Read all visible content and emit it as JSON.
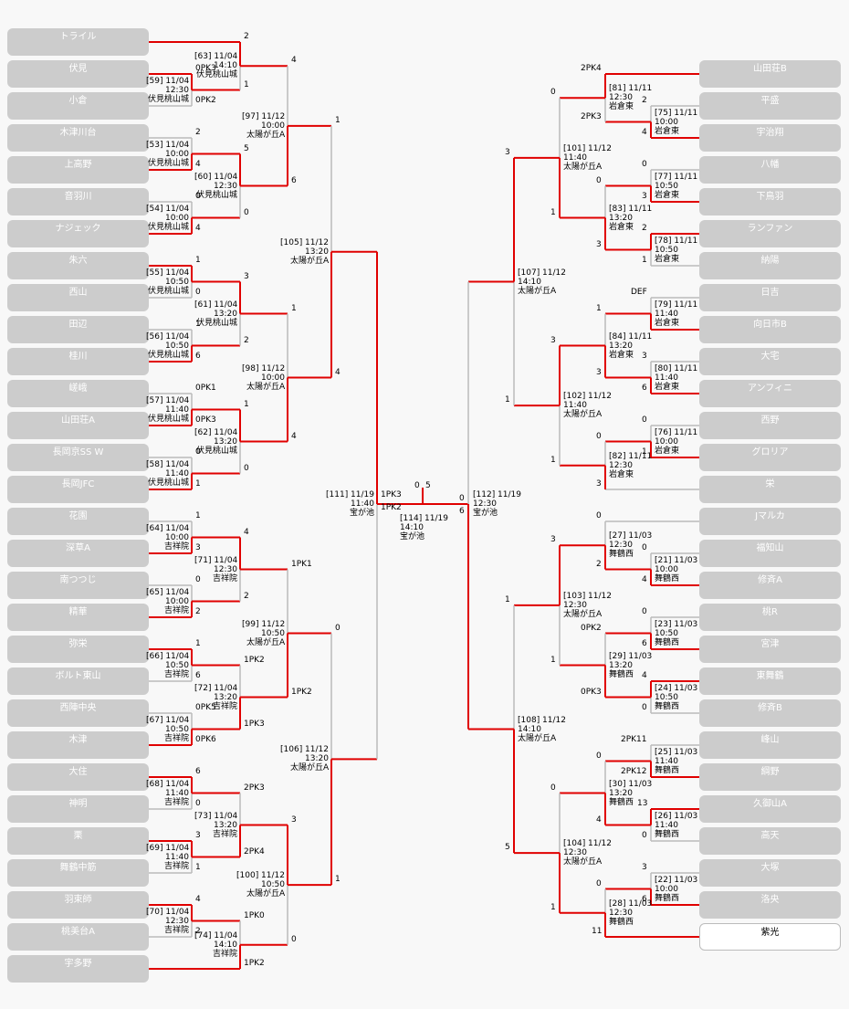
{
  "colors": {
    "win": "#e00000",
    "lose": "#bbbbbb",
    "team_bg": "#cccccc",
    "team_text": "#ffffff",
    "bg": "#f8f8f8"
  },
  "teams_left": [
    "トライル",
    "伏見",
    "小倉",
    "木津川台",
    "上高野",
    "音羽川",
    "ナジェック",
    "朱六",
    "西山",
    "田辺",
    "桂川",
    "嵯峨",
    "山田荘A",
    "長岡京SS W",
    "長岡JFC",
    "花園",
    "深草A",
    "南つつじ",
    "精華",
    "弥栄",
    "ボルト東山",
    "西陣中央",
    "木津",
    "大住",
    "神明",
    "栗",
    "舞鶴中筋",
    "羽束師",
    "桃美台A",
    "宇多野"
  ],
  "teams_right": [
    "山田荘B",
    "平盛",
    "宇治翔",
    "八幡",
    "下鳥羽",
    "ランファン",
    "納陽",
    "日吉",
    "向日市B",
    "大宅",
    "アンフィニ",
    "西野",
    "グロリア",
    "栄",
    "Jマルカ",
    "福知山",
    "修斉A",
    "桃R",
    "宮津",
    "東舞鶴",
    "修斉B",
    "峰山",
    "綱野",
    "久御山A",
    "高天",
    "大塚",
    "洛央",
    "紫光"
  ],
  "left_r1": [
    {
      "info": [
        "[63] 11/04",
        "14:10",
        "伏見桃山城"
      ],
      "s": [
        "2",
        "1"
      ]
    },
    {
      "info": [
        "[59] 11/04",
        "12:30",
        "伏見桃山城"
      ],
      "s": [
        "0PK3",
        "0PK2"
      ]
    },
    {
      "info": [
        "[53] 11/04",
        "10:00",
        "伏見桃山城"
      ],
      "s": [
        "2",
        "4"
      ]
    },
    {
      "info": [
        "[54] 11/04",
        "10:00",
        "伏見桃山城"
      ],
      "s": [
        "0",
        "4"
      ]
    },
    {
      "info": [
        "[55] 11/04",
        "10:50",
        "伏見桃山城"
      ],
      "s": [
        "1",
        "0"
      ]
    },
    {
      "info": [
        "[56] 11/04",
        "10:50",
        "伏見桃山城"
      ],
      "s": [
        "1",
        "6"
      ]
    },
    {
      "info": [
        "[57] 11/04",
        "11:40",
        "伏見桃山城"
      ],
      "s": [
        "0PK1",
        "0PK3"
      ]
    },
    {
      "info": [
        "[58] 11/04",
        "11:40",
        "伏見桃山城"
      ],
      "s": [
        "0",
        "1"
      ]
    },
    {
      "info": [
        "[64] 11/04",
        "10:00",
        "吉祥院"
      ],
      "s": [
        "1",
        "3"
      ]
    },
    {
      "info": [
        "[65] 11/04",
        "10:00",
        "吉祥院"
      ],
      "s": [
        "0",
        "2"
      ]
    },
    {
      "info": [
        "[66] 11/04",
        "10:50",
        "吉祥院"
      ],
      "s": [
        "1",
        "6"
      ]
    },
    {
      "info": [
        "[67] 11/04",
        "10:50",
        "吉祥院"
      ],
      "s": [
        "0PK5",
        "0PK6"
      ]
    },
    {
      "info": [
        "[68] 11/04",
        "11:40",
        "吉祥院"
      ],
      "s": [
        "6",
        "0"
      ]
    },
    {
      "info": [
        "[69] 11/04",
        "11:40",
        "吉祥院"
      ],
      "s": [
        "3",
        "1"
      ]
    },
    {
      "info": [
        "[70] 11/04",
        "12:30",
        "吉祥院"
      ],
      "s": [
        "4",
        "2"
      ]
    }
  ],
  "left_r2": [
    {
      "info": [
        "[60] 11/04",
        "12:30",
        "伏見桃山城"
      ],
      "s": [
        "5",
        "0"
      ]
    },
    {
      "info": [
        "[61] 11/04",
        "13:20",
        "伏見桃山城"
      ],
      "s": [
        "3",
        "2"
      ]
    },
    {
      "info": [
        "[62] 11/04",
        "13:20",
        "伏見桃山城"
      ],
      "s": [
        "1",
        "0"
      ]
    },
    {
      "info": [
        "[71] 11/04",
        "12:30",
        "吉祥院"
      ],
      "s": [
        "4",
        "2"
      ]
    },
    {
      "info": [
        "[72] 11/04",
        "13:20",
        "吉祥院"
      ],
      "s": [
        "1PK2",
        "1PK3"
      ]
    },
    {
      "info": [
        "[73] 11/04",
        "13:20",
        "吉祥院"
      ],
      "s": [
        "2PK3",
        "2PK4"
      ]
    },
    {
      "info": [
        "[74] 11/04",
        "14:10",
        "吉祥院"
      ],
      "s": [
        "1PK0",
        "1PK2"
      ]
    }
  ],
  "left_r3": [
    {
      "info": [
        "[97] 11/12",
        "10:00",
        "太陽が丘A"
      ],
      "s": [
        "4",
        "6"
      ]
    },
    {
      "info": [
        "[98] 11/12",
        "10:00",
        "太陽が丘A"
      ],
      "s": [
        "1",
        "4"
      ]
    },
    {
      "info": [
        "[99] 11/12",
        "10:50",
        "太陽が丘A"
      ],
      "s": [
        "1PK1",
        "1PK2"
      ]
    },
    {
      "info": [
        "[100] 11/12",
        "10:50",
        "太陽が丘A"
      ],
      "s": [
        "3",
        "0"
      ]
    }
  ],
  "left_r4": [
    {
      "info": [
        "[105] 11/12",
        "13:20",
        "太陽が丘A"
      ],
      "s": [
        "1",
        "4"
      ]
    },
    {
      "info": [
        "[106] 11/12",
        "13:20",
        "太陽が丘A"
      ],
      "s": [
        "0",
        "1"
      ]
    }
  ],
  "left_sf": {
    "info": [
      "[111] 11/19",
      "11:40",
      "宝が池"
    ],
    "s": [
      "1PK3",
      "1PK2"
    ]
  },
  "final": {
    "info": [
      "[114] 11/19",
      "14:10",
      "宝が池"
    ],
    "s": [
      "0",
      "5"
    ]
  },
  "right_sf": {
    "info": [
      "[112] 11/19",
      "12:30",
      "宝が池"
    ],
    "s": [
      "0",
      "6"
    ]
  },
  "right_r4": [
    {
      "info": [
        "[107] 11/12",
        "14:10",
        "太陽が丘A"
      ],
      "s": [
        "3",
        "1"
      ]
    },
    {
      "info": [
        "[108] 11/12",
        "14:10",
        "太陽が丘A"
      ],
      "s": [
        "1",
        "5"
      ]
    }
  ],
  "right_r3": [
    {
      "info": [
        "[101] 11/12",
        "11:40",
        "太陽が丘A"
      ],
      "s": [
        "0",
        "1"
      ]
    },
    {
      "info": [
        "[102] 11/12",
        "11:40",
        "太陽が丘A"
      ],
      "s": [
        "3",
        "1"
      ]
    },
    {
      "info": [
        "[103] 11/12",
        "12:30",
        "太陽が丘A"
      ],
      "s": [
        "3",
        "1"
      ]
    },
    {
      "info": [
        "[104] 11/12",
        "12:30",
        "太陽が丘A"
      ],
      "s": [
        "0",
        "1"
      ]
    }
  ],
  "right_r2": [
    {
      "info": [
        "[81] 11/11",
        "12:30",
        "岩倉東"
      ],
      "s": [
        "2PK4",
        "2PK3"
      ]
    },
    {
      "info": [
        "[83] 11/11",
        "13:20",
        "岩倉東"
      ],
      "s": [
        "0",
        "3"
      ]
    },
    {
      "info": [
        "[84] 11/11",
        "13:20",
        "岩倉東"
      ],
      "s": [
        "1",
        "3"
      ]
    },
    {
      "info": [
        "[82] 11/11",
        "12:30",
        "岩倉東"
      ],
      "s": [
        "0",
        "3"
      ]
    },
    {
      "info": [
        "[27] 11/03",
        "12:30",
        "舞鶴西"
      ],
      "s": [
        "0",
        "2"
      ]
    },
    {
      "info": [
        "[29] 11/03",
        "13:20",
        "舞鶴西"
      ],
      "s": [
        "0PK2",
        "0PK3"
      ]
    },
    {
      "info": [
        "[30] 11/03",
        "13:20",
        "舞鶴西"
      ],
      "s": [
        "0",
        "4"
      ]
    },
    {
      "info": [
        "[28] 11/03",
        "12:30",
        "舞鶴西"
      ],
      "s": [
        "0",
        "11"
      ]
    }
  ],
  "right_r1": [
    {
      "info": [
        "[75] 11/11",
        "10:00",
        "岩倉東"
      ],
      "s": [
        "2",
        "4"
      ]
    },
    {
      "info": [
        "[77] 11/11",
        "10:50",
        "岩倉東"
      ],
      "s": [
        "0",
        "3"
      ]
    },
    {
      "info": [
        "[78] 11/11",
        "10:50",
        "岩倉東"
      ],
      "s": [
        "2",
        "1"
      ]
    },
    {
      "info": [
        "[79] 11/11",
        "11:40",
        "岩倉東"
      ],
      "s": [
        "DEF",
        ""
      ]
    },
    {
      "info": [
        "[80] 11/11",
        "11:40",
        "岩倉東"
      ],
      "s": [
        "3",
        "6"
      ]
    },
    {
      "info": [
        "[76] 11/11",
        "10:00",
        "岩倉東"
      ],
      "s": [
        "0",
        "1"
      ]
    },
    {
      "info": [
        "[21] 11/03",
        "10:00",
        "舞鶴西"
      ],
      "s": [
        "0",
        "4"
      ]
    },
    {
      "info": [
        "[23] 11/03",
        "10:50",
        "舞鶴西"
      ],
      "s": [
        "0",
        "6"
      ]
    },
    {
      "info": [
        "[24] 11/03",
        "10:50",
        "舞鶴西"
      ],
      "s": [
        "4",
        "0"
      ]
    },
    {
      "info": [
        "[25] 11/03",
        "11:40",
        "舞鶴西"
      ],
      "s": [
        "2PK11",
        "2PK12"
      ]
    },
    {
      "info": [
        "[26] 11/03",
        "11:40",
        "舞鶴西"
      ],
      "s": [
        "13",
        "0"
      ]
    },
    {
      "info": [
        "[22] 11/03",
        "10:00",
        "舞鶴西"
      ],
      "s": [
        "3",
        "6"
      ]
    }
  ]
}
